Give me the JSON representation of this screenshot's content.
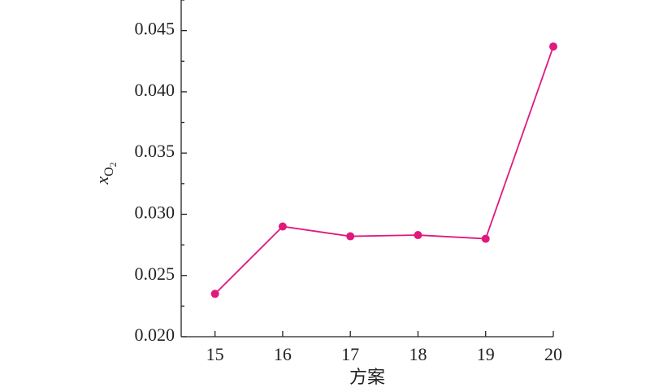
{
  "chart_data": {
    "type": "line",
    "x_label": "方案",
    "y_label": {
      "base": "x",
      "sub": "O",
      "subsub": "2"
    },
    "x": [
      15,
      16,
      17,
      18,
      19,
      20
    ],
    "series": [
      {
        "color": "#e0197d",
        "values": [
          0.0235,
          0.029,
          0.0282,
          0.0283,
          0.028,
          0.0437
        ]
      }
    ],
    "xlim": [
      14.5,
      20
    ],
    "xticks": [
      15,
      16,
      17,
      18,
      19,
      20
    ],
    "ylim": [
      0.02,
      0.0475
    ],
    "yticks": [
      {
        "value": 0.02,
        "label": "0.020"
      },
      {
        "value": 0.025,
        "label": "0.025"
      },
      {
        "value": 0.03,
        "label": "0.030"
      },
      {
        "value": 0.035,
        "label": "0.035"
      },
      {
        "value": 0.04,
        "label": "0.040"
      },
      {
        "value": 0.045,
        "label": "0.045"
      }
    ],
    "yminorticks": [
      0.0225,
      0.0275,
      0.0325,
      0.0375,
      0.0425,
      0.0475
    ],
    "grid": false
  }
}
